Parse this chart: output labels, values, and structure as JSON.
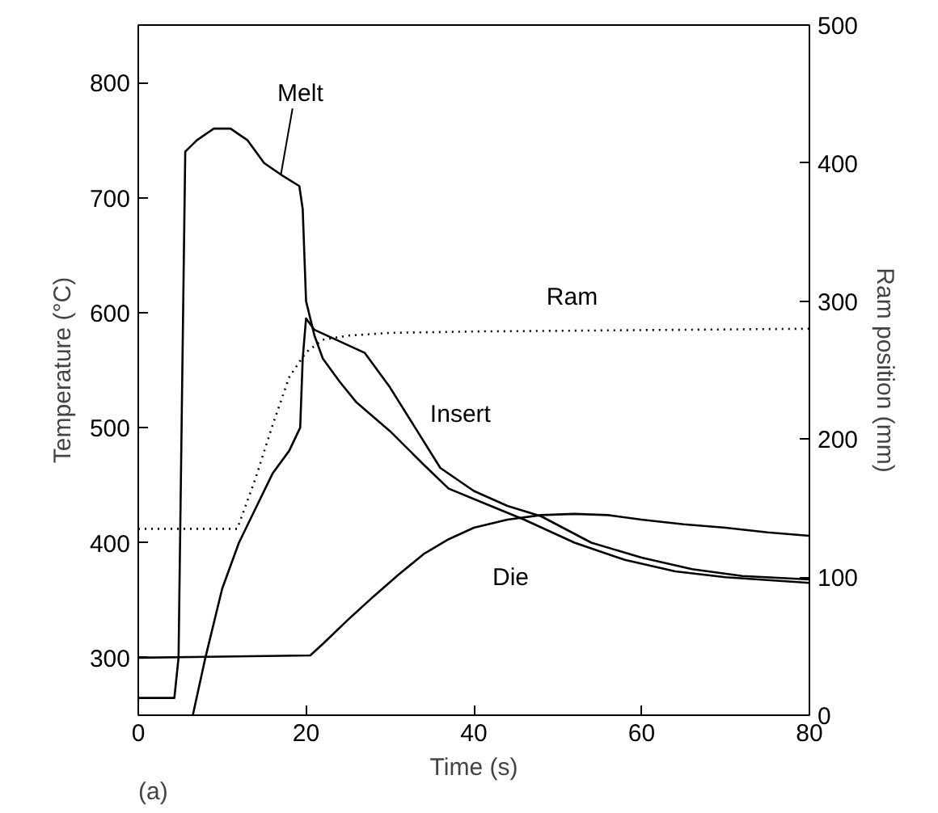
{
  "chart_data": {
    "type": "line",
    "xlabel": "Time (s)",
    "ylabel": "Temperature (°C)",
    "y2label": "Ram position (mm)",
    "xlim": [
      0,
      80
    ],
    "xticks": [
      0,
      20,
      40,
      60,
      80
    ],
    "ylim": [
      250,
      850
    ],
    "yticks": [
      300,
      400,
      500,
      600,
      700,
      800
    ],
    "y2lim": [
      0,
      500
    ],
    "y2ticks": [
      0,
      100,
      200,
      300,
      400,
      500
    ],
    "grid": false,
    "legend": false,
    "marker": "none",
    "series": [
      {
        "name": "Melt",
        "color": "#000000",
        "x": [
          0,
          4.3,
          4.8,
          5.6,
          7,
          9,
          11,
          13,
          15,
          17,
          19.2,
          19.6,
          20,
          21,
          22,
          24,
          26,
          30,
          34,
          37,
          42,
          46,
          52,
          58,
          64,
          70,
          80
        ],
        "values": [
          265,
          265,
          300,
          740,
          750,
          760,
          760,
          750,
          730,
          720,
          710,
          690,
          610,
          580,
          560,
          540,
          522,
          497,
          468,
          447,
          432,
          420,
          400,
          385,
          375,
          370,
          365
        ]
      },
      {
        "name": "Insert",
        "color": "#000000",
        "x": [
          6.5,
          8,
          10,
          12,
          14,
          16,
          18,
          19.3,
          19.6,
          20,
          21,
          24,
          27,
          30,
          33,
          36,
          40,
          44,
          48,
          54,
          60,
          66,
          72,
          80
        ],
        "values": [
          250,
          300,
          360,
          400,
          430,
          460,
          480,
          500,
          560,
          595,
          585,
          575,
          565,
          535,
          500,
          465,
          445,
          432,
          423,
          400,
          387,
          377,
          371,
          368
        ]
      },
      {
        "name": "Die",
        "color": "#000000",
        "x": [
          0,
          20.5,
          22,
          25,
          28,
          31,
          34,
          37,
          40,
          44,
          48,
          52,
          56,
          60,
          65,
          70,
          75,
          80
        ],
        "values": [
          300,
          302,
          312,
          333,
          353,
          372,
          390,
          403,
          413,
          420,
          424,
          425,
          424,
          420,
          416,
          413,
          409,
          406
        ]
      },
      {
        "name": "Ram",
        "color": "#000000",
        "axis": "y2",
        "line_style": "dotted",
        "x": [
          0,
          11.8,
          14,
          16,
          18,
          20,
          22,
          25,
          30,
          40,
          60,
          80
        ],
        "values": [
          135,
          135,
          172,
          210,
          245,
          263,
          272,
          275,
          277,
          278,
          279,
          280
        ]
      }
    ],
    "annotations": [
      "(a)"
    ]
  }
}
